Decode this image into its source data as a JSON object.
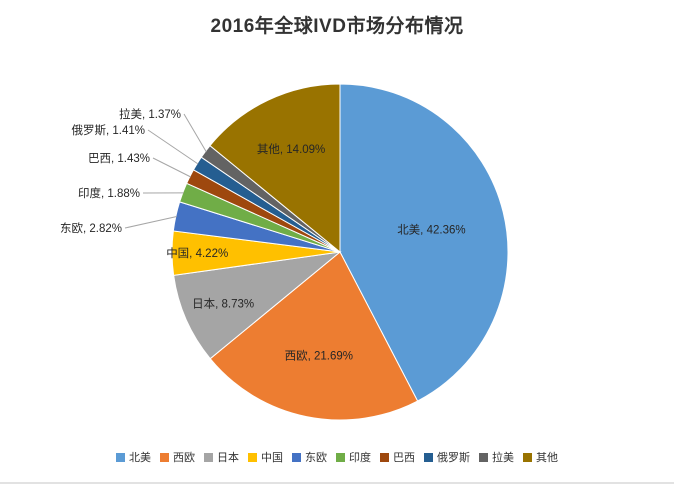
{
  "chart_data": {
    "type": "pie",
    "title": "2016年全球IVD市场分布情况",
    "label_format": "{name}, {value}%",
    "legend_position": "bottom",
    "start_angle_deg": 0,
    "direction": "clockwise",
    "background_color": "#ffffff",
    "series": [
      {
        "name": "北美",
        "value": 42.36,
        "color": "#5B9BD5"
      },
      {
        "name": "西欧",
        "value": 21.69,
        "color": "#ED7D31"
      },
      {
        "name": "日本",
        "value": 8.73,
        "color": "#A5A5A5"
      },
      {
        "name": "中国",
        "value": 4.22,
        "color": "#FFC000"
      },
      {
        "name": "东欧",
        "value": 2.82,
        "color": "#4472C4"
      },
      {
        "name": "印度",
        "value": 1.88,
        "color": "#70AD47"
      },
      {
        "name": "巴西",
        "value": 1.43,
        "color": "#9E480E"
      },
      {
        "name": "俄罗斯",
        "value": 1.41,
        "color": "#255E91"
      },
      {
        "name": "拉美",
        "value": 1.37,
        "color": "#636363"
      },
      {
        "name": "其他",
        "value": 14.09,
        "color": "#997300"
      }
    ]
  }
}
